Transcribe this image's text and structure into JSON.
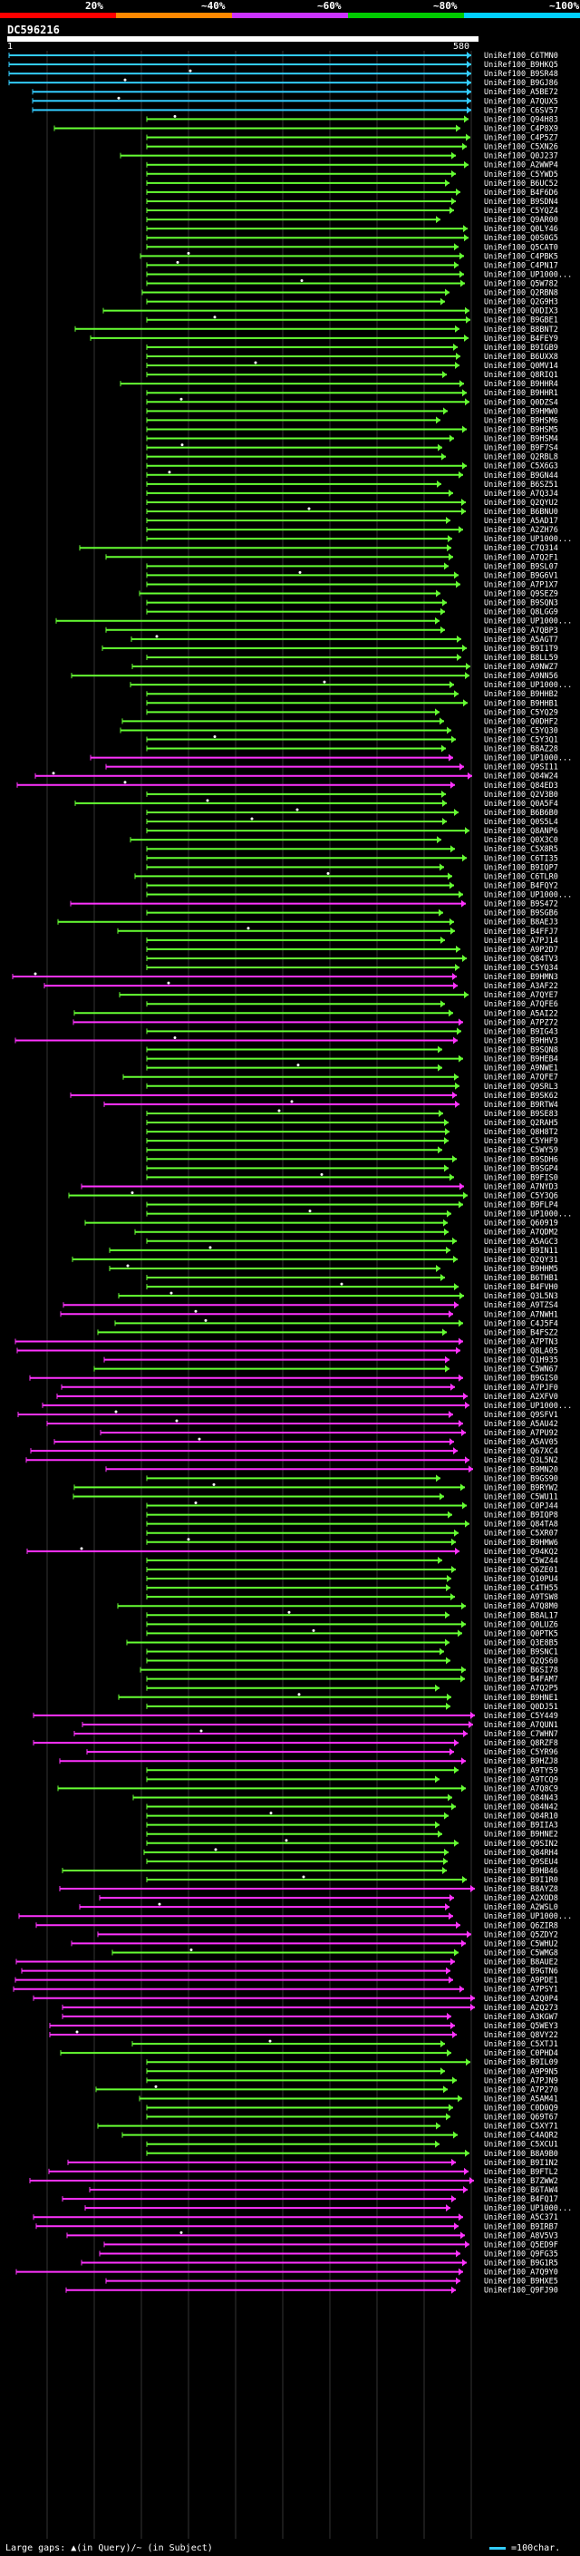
{
  "query_id": "DC596216",
  "coverage_bar": {
    "labels": [
      "20%",
      "~40%",
      "~60%",
      "~80%",
      "~100%"
    ],
    "colors": [
      "#ff0000",
      "#ff8800",
      "#cc33ff",
      "#00cc00",
      "#00d0ff"
    ]
  },
  "ruler": {
    "start": "1",
    "end": "580"
  },
  "legend": {
    "large_gaps": "Large gaps: ▲(in Query)/~ (in Subject)",
    "scale": "=100char."
  },
  "colors": {
    "cyan": "#33ccff",
    "green": "#66ff33",
    "magenta": "#ff33ff",
    "grid": "#333333"
  },
  "hits": [
    {
      "id": "UniRef100_C6TMN0",
      "color": "cyan"
    },
    {
      "id": "UniRef100_B9HKQ5",
      "color": "cyan"
    },
    {
      "id": "UniRef100_B9SR48",
      "color": "cyan"
    },
    {
      "id": "UniRef100_B9GJ86",
      "color": "cyan"
    },
    {
      "id": "UniRef100_A5BE72",
      "color": "cyan"
    },
    {
      "id": "UniRef100_A7QUX5",
      "color": "cyan"
    },
    {
      "id": "UniRef100_C6SV57",
      "color": "cyan"
    },
    {
      "id": "UniRef100_Q94H83",
      "color": "green"
    },
    {
      "id": "UniRef100_C4P8X9",
      "color": "green"
    },
    {
      "id": "UniRef100_C4P5Z7",
      "color": "green"
    },
    {
      "id": "UniRef100_C5XN26",
      "color": "green"
    },
    {
      "id": "UniRef100_Q0J237",
      "color": "green"
    },
    {
      "id": "UniRef100_A2WWP4",
      "color": "green"
    },
    {
      "id": "UniRef100_C5YWD5",
      "color": "green"
    },
    {
      "id": "UniRef100_B6UC52",
      "color": "green"
    },
    {
      "id": "UniRef100_B4F6D6",
      "color": "green"
    },
    {
      "id": "UniRef100_B9SDN4",
      "color": "green"
    },
    {
      "id": "UniRef100_C5YQZ4",
      "color": "green"
    },
    {
      "id": "UniRef100_Q9AR00",
      "color": "green"
    },
    {
      "id": "UniRef100_Q0LY46",
      "color": "green"
    },
    {
      "id": "UniRef100_Q0S0G5",
      "color": "green"
    },
    {
      "id": "UniRef100_Q5CAT0",
      "color": "green"
    },
    {
      "id": "UniRef100_C4PBK5",
      "color": "green"
    },
    {
      "id": "UniRef100_C4PN17",
      "color": "green"
    },
    {
      "id": "UniRef100_UP1000...",
      "color": "green"
    },
    {
      "id": "UniRef100_Q5W782",
      "color": "green"
    },
    {
      "id": "UniRef100_Q2RBN8",
      "color": "green"
    },
    {
      "id": "UniRef100_Q2G9H3",
      "color": "green"
    },
    {
      "id": "UniRef100_Q0DIX3",
      "color": "green"
    },
    {
      "id": "UniRef100_B9GBE1",
      "color": "green"
    },
    {
      "id": "UniRef100_B8BNT2",
      "color": "green"
    },
    {
      "id": "UniRef100_B4FEY9",
      "color": "green"
    },
    {
      "id": "UniRef100_B9IGB9",
      "color": "green"
    },
    {
      "id": "UniRef100_B6UXX8",
      "color": "green"
    },
    {
      "id": "UniRef100_Q0MV14",
      "color": "green"
    },
    {
      "id": "UniRef100_Q8RIQ1",
      "color": "green"
    },
    {
      "id": "UniRef100_B9HHR4",
      "color": "green"
    },
    {
      "id": "UniRef100_B9HHR1",
      "color": "green"
    },
    {
      "id": "UniRef100_Q0DZS4",
      "color": "green"
    },
    {
      "id": "UniRef100_B9HMW0",
      "color": "green"
    },
    {
      "id": "UniRef100_B9HSM6",
      "color": "green"
    },
    {
      "id": "UniRef100_B9HSM5",
      "color": "green"
    },
    {
      "id": "UniRef100_B9HSM4",
      "color": "green"
    },
    {
      "id": "UniRef100_B9F7S4",
      "color": "green"
    },
    {
      "id": "UniRef100_Q2RBL8",
      "color": "green"
    },
    {
      "id": "UniRef100_C5X6G3",
      "color": "green"
    },
    {
      "id": "UniRef100_B9GN44",
      "color": "green"
    },
    {
      "id": "UniRef100_B6SZ51",
      "color": "green"
    },
    {
      "id": "UniRef100_A7Q3J4",
      "color": "green"
    },
    {
      "id": "UniRef100_Q2QYU2",
      "color": "green"
    },
    {
      "id": "UniRef100_B6BNU0",
      "color": "green"
    },
    {
      "id": "UniRef100_A5AD17",
      "color": "green"
    },
    {
      "id": "UniRef100_A2ZH76",
      "color": "green"
    },
    {
      "id": "UniRef100_UP1000...",
      "color": "green"
    },
    {
      "id": "UniRef100_C7Q314",
      "color": "green"
    },
    {
      "id": "UniRef100_A7Q2F1",
      "color": "green"
    },
    {
      "id": "UniRef100_B9SL07",
      "color": "green"
    },
    {
      "id": "UniRef100_B9G6V1",
      "color": "green"
    },
    {
      "id": "UniRef100_A7P1X7",
      "color": "green"
    },
    {
      "id": "UniRef100_Q9SEZ9",
      "color": "green"
    },
    {
      "id": "UniRef100_B9SQN3",
      "color": "green"
    },
    {
      "id": "UniRef100_Q8LGG9",
      "color": "green"
    },
    {
      "id": "UniRef100_UP1000...",
      "color": "green"
    },
    {
      "id": "UniRef100_A7QBP3",
      "color": "green"
    },
    {
      "id": "UniRef100_A5AGT7",
      "color": "green"
    },
    {
      "id": "UniRef100_B9I1T9",
      "color": "green"
    },
    {
      "id": "UniRef100_B8LL59",
      "color": "green"
    },
    {
      "id": "UniRef100_A9NWZ7",
      "color": "green"
    },
    {
      "id": "UniRef100_A9NN56",
      "color": "green"
    },
    {
      "id": "UniRef100_UP1000...",
      "color": "green"
    },
    {
      "id": "UniRef100_B9HHB2",
      "color": "green"
    },
    {
      "id": "UniRef100_B9HHB1",
      "color": "green"
    },
    {
      "id": "UniRef100_C5YQ29",
      "color": "green"
    },
    {
      "id": "UniRef100_Q0DHF2",
      "color": "green"
    },
    {
      "id": "UniRef100_C5YQ30",
      "color": "green"
    },
    {
      "id": "UniRef100_C5Y3Q1",
      "color": "green"
    },
    {
      "id": "UniRef100_B8AZ28",
      "color": "green"
    },
    {
      "id": "UniRef100_UP1000...",
      "color": "magenta"
    },
    {
      "id": "UniRef100_Q9SI11",
      "color": "magenta"
    },
    {
      "id": "UniRef100_Q84W24",
      "color": "magenta"
    },
    {
      "id": "UniRef100_Q84ED3",
      "color": "magenta"
    },
    {
      "id": "UniRef100_Q2V3B0",
      "color": "green"
    },
    {
      "id": "UniRef100_Q0A5F4",
      "color": "green"
    },
    {
      "id": "UniRef100_B6B6B0",
      "color": "green"
    },
    {
      "id": "UniRef100_Q0S5L4",
      "color": "green"
    },
    {
      "id": "UniRef100_Q8ANP6",
      "color": "green"
    },
    {
      "id": "UniRef100_Q0X3C0",
      "color": "green"
    },
    {
      "id": "UniRef100_C5X8R5",
      "color": "green"
    },
    {
      "id": "UniRef100_C6TI35",
      "color": "green"
    },
    {
      "id": "UniRef100_B9IQP7",
      "color": "green"
    },
    {
      "id": "UniRef100_C6TLR0",
      "color": "green"
    },
    {
      "id": "UniRef100_B4FQY2",
      "color": "green"
    },
    {
      "id": "UniRef100_UP1000...",
      "color": "green"
    },
    {
      "id": "UniRef100_B9S472",
      "color": "magenta"
    },
    {
      "id": "UniRef100_B9SGB6",
      "color": "green"
    },
    {
      "id": "UniRef100_B8AEJ3",
      "color": "green"
    },
    {
      "id": "UniRef100_B4FFJ7",
      "color": "green"
    },
    {
      "id": "UniRef100_A7PJ14",
      "color": "green"
    },
    {
      "id": "UniRef100_A9P2D7",
      "color": "green"
    },
    {
      "id": "UniRef100_Q84TV3",
      "color": "green"
    },
    {
      "id": "UniRef100_C5YQ34",
      "color": "green"
    },
    {
      "id": "UniRef100_B9HMN3",
      "color": "magenta"
    },
    {
      "id": "UniRef100_A3AF22",
      "color": "magenta"
    },
    {
      "id": "UniRef100_A7QYE7",
      "color": "green"
    },
    {
      "id": "UniRef100_A7QFE6",
      "color": "green"
    },
    {
      "id": "UniRef100_A5AI22",
      "color": "green"
    },
    {
      "id": "UniRef100_A7PZ72",
      "color": "magenta"
    },
    {
      "id": "UniRef100_B9IG43",
      "color": "green"
    },
    {
      "id": "UniRef100_B9HHV3",
      "color": "magenta"
    },
    {
      "id": "UniRef100_B9SQN8",
      "color": "green"
    },
    {
      "id": "UniRef100_B9HEB4",
      "color": "green"
    },
    {
      "id": "UniRef100_A9NWE1",
      "color": "green"
    },
    {
      "id": "UniRef100_A7QFE7",
      "color": "green"
    },
    {
      "id": "UniRef100_Q9SRL3",
      "color": "green"
    },
    {
      "id": "UniRef100_B9SK62",
      "color": "magenta"
    },
    {
      "id": "UniRef100_B9RTW4",
      "color": "magenta"
    },
    {
      "id": "UniRef100_B9SE83",
      "color": "green"
    },
    {
      "id": "UniRef100_Q2RAH5",
      "color": "green"
    },
    {
      "id": "UniRef100_Q8H8T2",
      "color": "green"
    },
    {
      "id": "UniRef100_C5YHF9",
      "color": "green"
    },
    {
      "id": "UniRef100_C5WY59",
      "color": "green"
    },
    {
      "id": "UniRef100_B9SDH6",
      "color": "green"
    },
    {
      "id": "UniRef100_B9SGP4",
      "color": "green"
    },
    {
      "id": "UniRef100_B9FIS0",
      "color": "green"
    },
    {
      "id": "UniRef100_A7NYD3",
      "color": "magenta"
    },
    {
      "id": "UniRef100_C5Y3Q6",
      "color": "green"
    },
    {
      "id": "UniRef100_B9FLP4",
      "color": "green"
    },
    {
      "id": "UniRef100_UP1000...",
      "color": "green"
    },
    {
      "id": "UniRef100_Q60919",
      "color": "green"
    },
    {
      "id": "UniRef100_A7QDM2",
      "color": "green"
    },
    {
      "id": "UniRef100_A5AGC3",
      "color": "green"
    },
    {
      "id": "UniRef100_B9IN11",
      "color": "green"
    },
    {
      "id": "UniRef100_Q2QY31",
      "color": "green"
    },
    {
      "id": "UniRef100_B9HHM5",
      "color": "green"
    },
    {
      "id": "UniRef100_B6THB1",
      "color": "green"
    },
    {
      "id": "UniRef100_B4FVH0",
      "color": "green"
    },
    {
      "id": "UniRef100_Q3L5N3",
      "color": "green"
    },
    {
      "id": "UniRef100_A9TZS4",
      "color": "magenta"
    },
    {
      "id": "UniRef100_A7NWH1",
      "color": "magenta"
    },
    {
      "id": "UniRef100_C4J5F4",
      "color": "green"
    },
    {
      "id": "UniRef100_B4FSZ2",
      "color": "green"
    },
    {
      "id": "UniRef100_A7PTN3",
      "color": "magenta"
    },
    {
      "id": "UniRef100_Q8LA05",
      "color": "magenta"
    },
    {
      "id": "UniRef100_Q1H935",
      "color": "magenta"
    },
    {
      "id": "UniRef100_C5WN67",
      "color": "green"
    },
    {
      "id": "UniRef100_B9GIS0",
      "color": "magenta"
    },
    {
      "id": "UniRef100_A7PJF0",
      "color": "magenta"
    },
    {
      "id": "UniRef100_A2XFV0",
      "color": "magenta"
    },
    {
      "id": "UniRef100_UP1000...",
      "color": "magenta"
    },
    {
      "id": "UniRef100_Q9SFV1",
      "color": "magenta"
    },
    {
      "id": "UniRef100_A5AU42",
      "color": "magenta"
    },
    {
      "id": "UniRef100_A7PU92",
      "color": "magenta"
    },
    {
      "id": "UniRef100_A5AV05",
      "color": "magenta"
    },
    {
      "id": "UniRef100_Q67XC4",
      "color": "magenta"
    },
    {
      "id": "UniRef100_Q3L5N2",
      "color": "magenta"
    },
    {
      "id": "UniRef100_B9MN20",
      "color": "magenta"
    },
    {
      "id": "UniRef100_B9GS90",
      "color": "green"
    },
    {
      "id": "UniRef100_B9RYW2",
      "color": "green"
    },
    {
      "id": "UniRef100_C5WU11",
      "color": "green"
    },
    {
      "id": "UniRef100_C0PJ44",
      "color": "green"
    },
    {
      "id": "UniRef100_B9IQP8",
      "color": "green"
    },
    {
      "id": "UniRef100_Q84TA8",
      "color": "green"
    },
    {
      "id": "UniRef100_C5XR07",
      "color": "green"
    },
    {
      "id": "UniRef100_B9HMW6",
      "color": "green"
    },
    {
      "id": "UniRef100_Q94KQ2",
      "color": "magenta"
    },
    {
      "id": "UniRef100_C5WZ44",
      "color": "green"
    },
    {
      "id": "UniRef100_Q6ZE01",
      "color": "green"
    },
    {
      "id": "UniRef100_Q10PU4",
      "color": "green"
    },
    {
      "id": "UniRef100_C4TH55",
      "color": "green"
    },
    {
      "id": "UniRef100_A9TSW8",
      "color": "green"
    },
    {
      "id": "UniRef100_A7Q8M0",
      "color": "green"
    },
    {
      "id": "UniRef100_B8AL17",
      "color": "green"
    },
    {
      "id": "UniRef100_Q0LUZ6",
      "color": "green"
    },
    {
      "id": "UniRef100_Q0PTK5",
      "color": "green"
    },
    {
      "id": "UniRef100_Q3E8B5",
      "color": "green"
    },
    {
      "id": "UniRef100_B9SNC1",
      "color": "green"
    },
    {
      "id": "UniRef100_Q2QS60",
      "color": "green"
    },
    {
      "id": "UniRef100_B6SI78",
      "color": "green"
    },
    {
      "id": "UniRef100_B4FAM7",
      "color": "green"
    },
    {
      "id": "UniRef100_A7Q2P5",
      "color": "green"
    },
    {
      "id": "UniRef100_B9HNE1",
      "color": "green"
    },
    {
      "id": "UniRef100_Q0DJ51",
      "color": "green"
    },
    {
      "id": "UniRef100_C5Y449",
      "color": "magenta"
    },
    {
      "id": "UniRef100_A7QUN1",
      "color": "magenta"
    },
    {
      "id": "UniRef100_C7WHN7",
      "color": "magenta"
    },
    {
      "id": "UniRef100_Q8RZF8",
      "color": "magenta"
    },
    {
      "id": "UniRef100_C5YR96",
      "color": "magenta"
    },
    {
      "id": "UniRef100_B9HZJ8",
      "color": "magenta"
    },
    {
      "id": "UniRef100_A9TY59",
      "color": "green"
    },
    {
      "id": "UniRef100_A9TCQ9",
      "color": "green"
    },
    {
      "id": "UniRef100_A7Q8C9",
      "color": "green"
    },
    {
      "id": "UniRef100_Q84N43",
      "color": "green"
    },
    {
      "id": "UniRef100_Q84N42",
      "color": "green"
    },
    {
      "id": "UniRef100_Q84R10",
      "color": "green"
    },
    {
      "id": "UniRef100_B9IIA3",
      "color": "green"
    },
    {
      "id": "UniRef100_B9HNE2",
      "color": "green"
    },
    {
      "id": "UniRef100_Q9SIN2",
      "color": "green"
    },
    {
      "id": "UniRef100_Q84RH4",
      "color": "green"
    },
    {
      "id": "UniRef100_Q9SEU4",
      "color": "green"
    },
    {
      "id": "UniRef100_B9HB46",
      "color": "green"
    },
    {
      "id": "UniRef100_B9I1R0",
      "color": "green"
    },
    {
      "id": "UniRef100_B8AYZ8",
      "color": "magenta"
    },
    {
      "id": "UniRef100_A2XOD8",
      "color": "magenta"
    },
    {
      "id": "UniRef100_A2WSL0",
      "color": "magenta"
    },
    {
      "id": "UniRef100_UP1000...",
      "color": "magenta"
    },
    {
      "id": "UniRef100_Q6ZIR8",
      "color": "magenta"
    },
    {
      "id": "UniRef100_Q5ZDY2",
      "color": "magenta"
    },
    {
      "id": "UniRef100_C5WHU2",
      "color": "magenta"
    },
    {
      "id": "UniRef100_C5WMG8",
      "color": "green"
    },
    {
      "id": "UniRef100_B8AUE2",
      "color": "magenta"
    },
    {
      "id": "UniRef100_B9GTN6",
      "color": "magenta"
    },
    {
      "id": "UniRef100_A9PDE1",
      "color": "magenta"
    },
    {
      "id": "UniRef100_A7PSY1",
      "color": "magenta"
    },
    {
      "id": "UniRef100_A2Q0P4",
      "color": "magenta"
    },
    {
      "id": "UniRef100_A2Q273",
      "color": "magenta"
    },
    {
      "id": "UniRef100_A3KGW7",
      "color": "magenta"
    },
    {
      "id": "UniRef100_Q5WEY3",
      "color": "magenta"
    },
    {
      "id": "UniRef100_Q8VY22",
      "color": "magenta"
    },
    {
      "id": "UniRef100_C5XTJ1",
      "color": "green"
    },
    {
      "id": "UniRef100_C0PHD4",
      "color": "green"
    },
    {
      "id": "UniRef100_B9IL09",
      "color": "green"
    },
    {
      "id": "UniRef100_A9P9N5",
      "color": "green"
    },
    {
      "id": "UniRef100_A7PJN9",
      "color": "green"
    },
    {
      "id": "UniRef100_A7P270",
      "color": "green"
    },
    {
      "id": "UniRef100_A5AM41",
      "color": "green"
    },
    {
      "id": "UniRef100_C0D0Q9",
      "color": "green"
    },
    {
      "id": "UniRef100_Q69T67",
      "color": "green"
    },
    {
      "id": "UniRef100_C5XY71",
      "color": "green"
    },
    {
      "id": "UniRef100_C4AQR2",
      "color": "green"
    },
    {
      "id": "UniRef100_C5XCU1",
      "color": "green"
    },
    {
      "id": "UniRef100_B8A9B0",
      "color": "green"
    },
    {
      "id": "UniRef100_B9I1N2",
      "color": "magenta"
    },
    {
      "id": "UniRef100_B9FTL2",
      "color": "magenta"
    },
    {
      "id": "UniRef100_B7ZWW2",
      "color": "magenta"
    },
    {
      "id": "UniRef100_B6TAW4",
      "color": "magenta"
    },
    {
      "id": "UniRef100_B4FQ17",
      "color": "magenta"
    },
    {
      "id": "UniRef100_UP1000...",
      "color": "magenta"
    },
    {
      "id": "UniRef100_A5C371",
      "color": "magenta"
    },
    {
      "id": "UniRef100_B9IRB7",
      "color": "magenta"
    },
    {
      "id": "UniRef100_A8V5V3",
      "color": "magenta"
    },
    {
      "id": "UniRef100_Q5ED9F",
      "color": "magenta"
    },
    {
      "id": "UniRef100_Q9FG35",
      "color": "magenta"
    },
    {
      "id": "UniRef100_B9G1R5",
      "color": "magenta"
    },
    {
      "id": "UniRef100_A7Q9Y0",
      "color": "magenta"
    },
    {
      "id": "UniRef100_B9HXE5",
      "color": "magenta"
    },
    {
      "id": "UniRef100_Q9FJ90",
      "color": "magenta"
    }
  ]
}
